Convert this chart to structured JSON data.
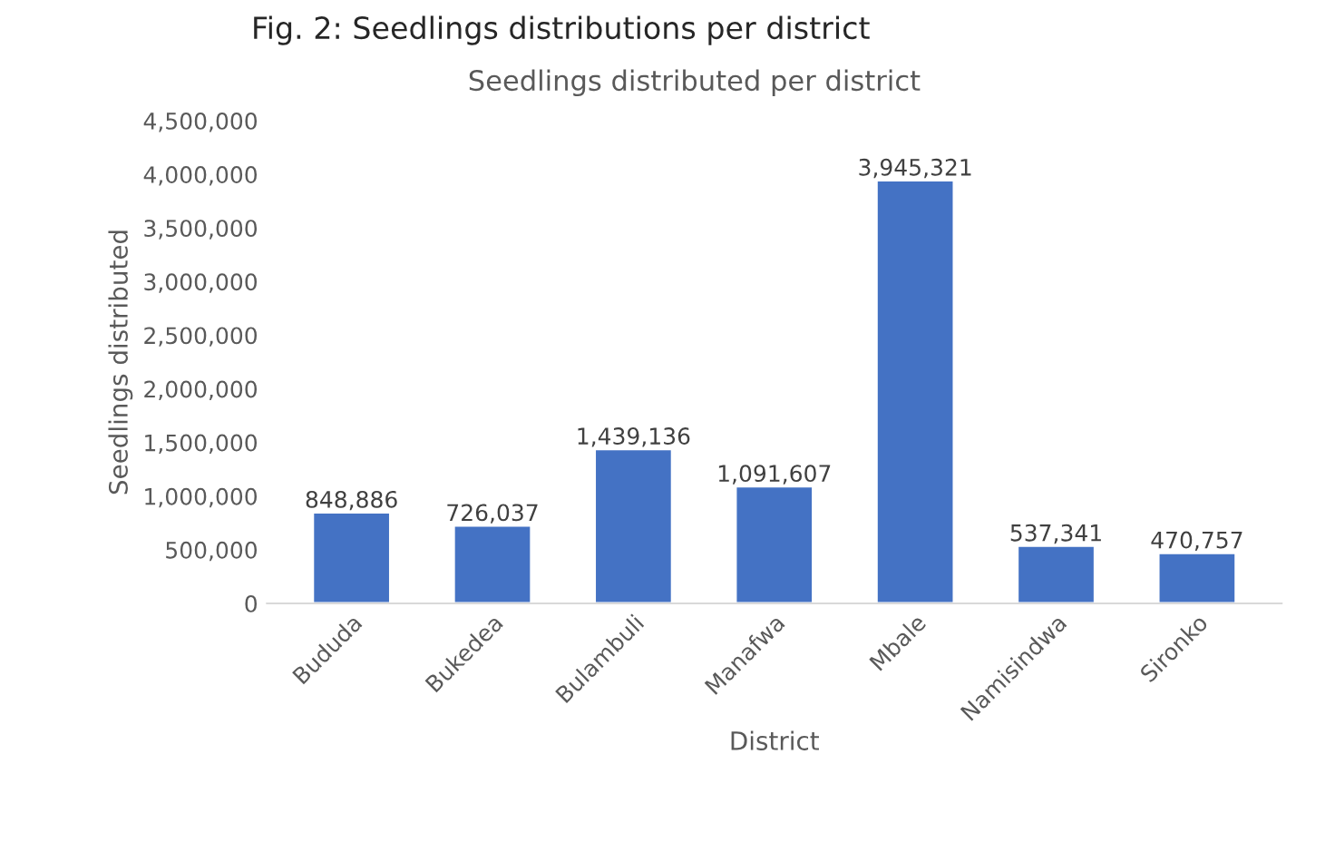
{
  "chart_data": {
    "type": "bar",
    "title": "Fig. 2: Seedlings distributions per district",
    "subtitle": "Seedlings distributed per district",
    "xlabel": "District",
    "ylabel": "Seedlings distributed",
    "categories": [
      "Bududa",
      "Bukedea",
      "Bulambuli",
      "Manafwa",
      "Mbale",
      "Namisindwa",
      "Sironko"
    ],
    "values": [
      848886,
      726037,
      1439136,
      1091607,
      3945321,
      537341,
      470757
    ],
    "value_labels": [
      "848,886",
      "726,037",
      "1,439,136",
      "1,091,607",
      "3,945,321",
      "537,341",
      "470,757"
    ],
    "color": "#4472c4",
    "ylim": [
      0,
      4500000
    ],
    "yticks": [
      {
        "value": 0,
        "label": "0"
      },
      {
        "value": 500000,
        "label": "500,000"
      },
      {
        "value": 1000000,
        "label": "1,000,000"
      },
      {
        "value": 1500000,
        "label": "1,500,000"
      },
      {
        "value": 2000000,
        "label": "2,000,000"
      },
      {
        "value": 2500000,
        "label": "2,500,000"
      },
      {
        "value": 3000000,
        "label": "3,000,000"
      },
      {
        "value": 3500000,
        "label": "3,500,000"
      },
      {
        "value": 4000000,
        "label": "4,000,000"
      },
      {
        "value": 4500000,
        "label": "4,500,000"
      }
    ]
  }
}
